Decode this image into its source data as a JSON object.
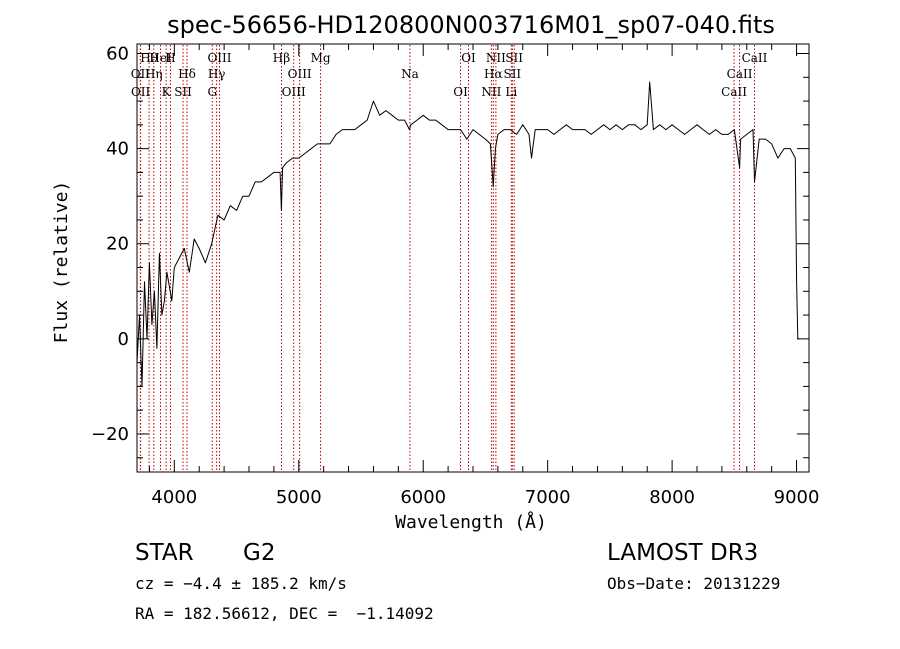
{
  "chart_data": {
    "type": "line",
    "title": "spec-56656-HD120800N003716M01_sp07-040.fits",
    "xlabel": "Wavelength (Å)",
    "ylabel": "Flux (relative)",
    "xlim": [
      3700,
      9100
    ],
    "ylim": [
      -28,
      62
    ],
    "x_ticks": [
      4000,
      5000,
      6000,
      7000,
      8000,
      9000
    ],
    "y_ticks": [
      -20,
      0,
      20,
      40,
      60
    ],
    "grid": false,
    "series": [
      {
        "name": "spectrum",
        "x": [
          3700,
          3720,
          3740,
          3760,
          3780,
          3800,
          3820,
          3840,
          3860,
          3880,
          3900,
          3920,
          3940,
          3960,
          3980,
          4000,
          4040,
          4080,
          4120,
          4160,
          4200,
          4250,
          4300,
          4350,
          4400,
          4450,
          4500,
          4550,
          4600,
          4650,
          4700,
          4750,
          4800,
          4850,
          4860,
          4870,
          4900,
          4950,
          5000,
          5050,
          5100,
          5150,
          5200,
          5250,
          5300,
          5350,
          5400,
          5450,
          5500,
          5550,
          5600,
          5650,
          5700,
          5750,
          5800,
          5850,
          5890,
          5900,
          5950,
          6000,
          6050,
          6100,
          6150,
          6200,
          6250,
          6300,
          6350,
          6400,
          6450,
          6500,
          6540,
          6562,
          6580,
          6600,
          6650,
          6700,
          6750,
          6800,
          6850,
          6870,
          6900,
          6950,
          7000,
          7050,
          7100,
          7150,
          7200,
          7250,
          7300,
          7350,
          7400,
          7450,
          7500,
          7550,
          7600,
          7650,
          7700,
          7750,
          7800,
          7820,
          7850,
          7900,
          7950,
          8000,
          8050,
          8100,
          8150,
          8200,
          8250,
          8300,
          8350,
          8400,
          8450,
          8500,
          8542,
          8550,
          8600,
          8650,
          8662,
          8700,
          8750,
          8800,
          8850,
          8900,
          8950,
          8990,
          9000,
          9010,
          9020
        ],
        "y": [
          -5,
          5,
          -10,
          12,
          0,
          16,
          3,
          10,
          -2,
          18,
          5,
          8,
          14,
          11,
          8,
          15,
          17,
          19,
          14,
          21,
          19,
          16,
          20,
          26,
          25,
          28,
          27,
          30,
          30,
          33,
          33,
          34,
          35,
          35,
          27,
          36,
          37,
          38,
          38,
          39,
          40,
          41,
          41,
          41,
          43,
          44,
          44,
          44,
          45,
          46,
          50,
          47,
          48,
          47,
          46,
          46,
          44,
          45,
          46,
          47,
          46,
          46,
          45,
          44,
          44,
          44,
          42,
          44,
          43,
          42,
          41,
          32,
          40,
          43,
          44,
          44,
          43,
          45,
          43,
          38,
          44,
          44,
          44,
          43,
          44,
          45,
          44,
          44,
          44,
          43,
          44,
          45,
          44,
          45,
          44,
          45,
          45,
          44,
          45,
          54,
          44,
          45,
          44,
          45,
          44,
          43,
          44,
          45,
          44,
          43,
          44,
          43,
          43,
          44,
          36,
          42,
          43,
          44,
          33,
          42,
          42,
          41,
          38,
          40,
          40,
          38,
          12,
          0,
          0
        ]
      }
    ],
    "line_labels": [
      {
        "name": "Hθ",
        "wave": 3797
      },
      {
        "name": "OII",
        "wave": 3727
      },
      {
        "name": "OII",
        "wave": 3729
      },
      {
        "name": "HeI",
        "wave": 3889
      },
      {
        "name": "Hη",
        "wave": 3835
      },
      {
        "name": "K",
        "wave": 3934
      },
      {
        "name": "H",
        "wave": 3969
      },
      {
        "name": "Hδ",
        "wave": 4102
      },
      {
        "name": "SII",
        "wave": 4070
      },
      {
        "name": "OIII",
        "wave": 4363
      },
      {
        "name": "Hγ",
        "wave": 4340
      },
      {
        "name": "G",
        "wave": 4305
      },
      {
        "name": "Hβ",
        "wave": 4861
      },
      {
        "name": "OIII",
        "wave": 5007
      },
      {
        "name": "OIII",
        "wave": 4959
      },
      {
        "name": "Mg",
        "wave": 5175
      },
      {
        "name": "Na",
        "wave": 5893
      },
      {
        "name": "OI",
        "wave": 6300
      },
      {
        "name": "OI",
        "wave": 6364
      },
      {
        "name": "Hα",
        "wave": 6563
      },
      {
        "name": "NII",
        "wave": 6548
      },
      {
        "name": "NII",
        "wave": 6584
      },
      {
        "name": "SII",
        "wave": 6716
      },
      {
        "name": "Li",
        "wave": 6708
      },
      {
        "name": "SII",
        "wave": 6731
      },
      {
        "name": "CaII",
        "wave": 8542
      },
      {
        "name": "CaII",
        "wave": 8498
      },
      {
        "name": "CaII",
        "wave": 8662
      }
    ]
  },
  "info": {
    "object_class": "STAR",
    "subclass": "G2",
    "survey": "LAMOST DR3",
    "redshift": "cz = −4.4 ± 185.2 km/s",
    "obs_date": "Obs−Date: 20131229",
    "coords": "RA = 182.56612, DEC =  −1.14092"
  },
  "colors": {
    "spectrum": "#000000",
    "line_marker": "#c00000",
    "axes": "#000000",
    "background": "#ffffff"
  }
}
